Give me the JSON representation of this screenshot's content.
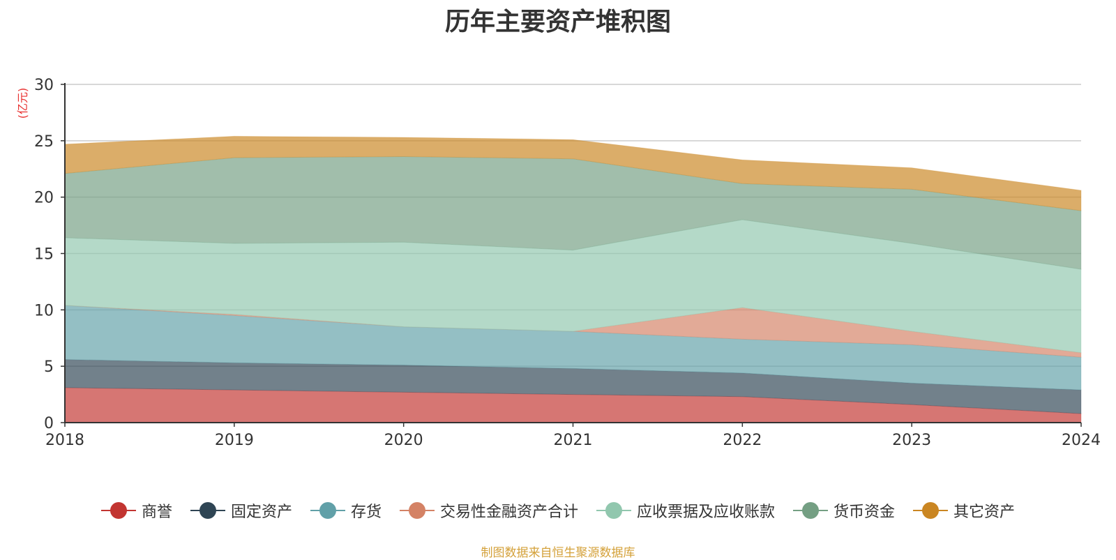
{
  "chart_data": {
    "type": "area",
    "stacked": true,
    "title": "历年主要资产堆积图",
    "ylabel": "(亿元)",
    "xlabel": "",
    "x": [
      "2018",
      "2019",
      "2020",
      "2021",
      "2022",
      "2023",
      "2024"
    ],
    "ylim": [
      0,
      30
    ],
    "yticks": [
      0,
      5,
      10,
      15,
      20,
      25,
      30
    ],
    "grid": true,
    "legend_position": "bottom",
    "series": [
      {
        "name": "商誉",
        "color": "#c23531",
        "values": [
          3.1,
          2.9,
          2.7,
          2.5,
          2.3,
          1.6,
          0.8
        ]
      },
      {
        "name": "固定资产",
        "color": "#2f4554",
        "values": [
          2.5,
          2.4,
          2.4,
          2.3,
          2.1,
          1.9,
          2.1
        ]
      },
      {
        "name": "存货",
        "color": "#61a0a8",
        "values": [
          4.8,
          4.2,
          3.4,
          3.3,
          3.0,
          3.4,
          2.9
        ]
      },
      {
        "name": "交易性金融资产合计",
        "color": "#d48265",
        "values": [
          0.0,
          0.1,
          0.0,
          0.0,
          2.8,
          1.2,
          0.4
        ]
      },
      {
        "name": "应收票据及应收账款",
        "color": "#91c7ae",
        "values": [
          6.0,
          6.3,
          7.5,
          7.2,
          7.8,
          7.8,
          7.4
        ]
      },
      {
        "name": "货币资金",
        "color": "#749f83",
        "values": [
          5.7,
          7.6,
          7.6,
          8.1,
          3.2,
          4.8,
          5.2
        ]
      },
      {
        "name": "其它资产",
        "color": "#ca8622",
        "values": [
          2.6,
          1.9,
          1.7,
          1.7,
          2.1,
          1.9,
          1.8
        ]
      }
    ]
  },
  "source_note": "制图数据来自恒生聚源数据库"
}
